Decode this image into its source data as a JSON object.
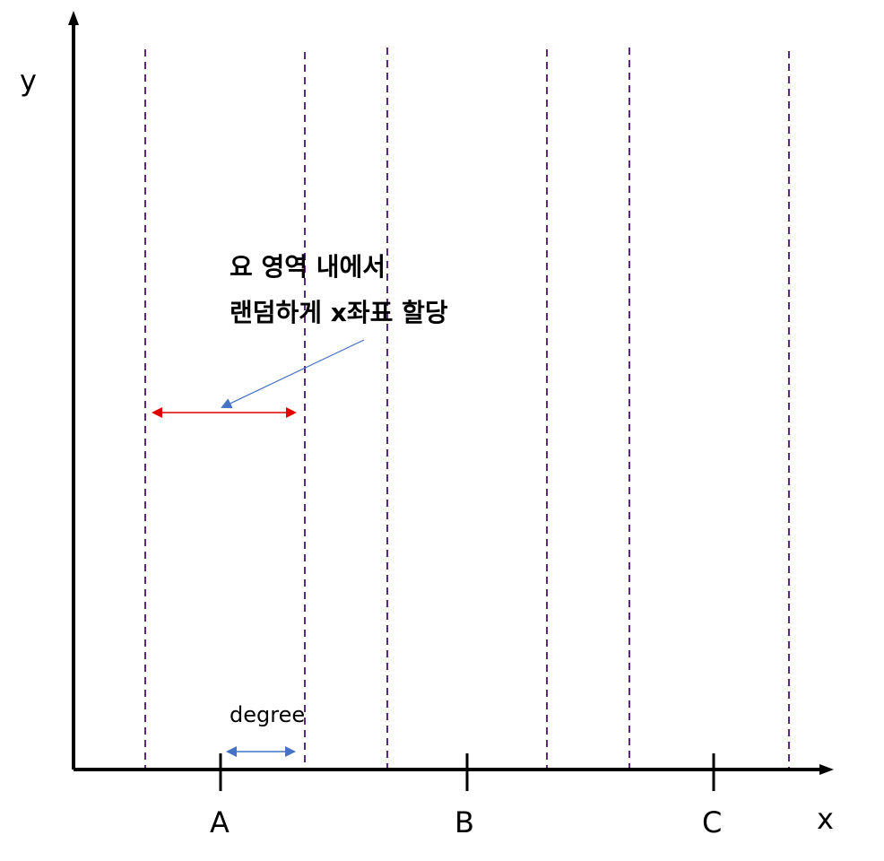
{
  "axes": {
    "x_label": "x",
    "y_label": "y"
  },
  "ticks": [
    "A",
    "B",
    "C"
  ],
  "degree_label": "degree",
  "annotation": {
    "line1": "요 영역 내에서",
    "line2": "랜덤하게 x좌표 할당"
  },
  "colors": {
    "axis": "#000000",
    "guide_lines": "#5a2a82",
    "range_arrow": "#e00000",
    "degree_arrow": "#4472c4",
    "pointer_arrow": "#4472c4"
  }
}
